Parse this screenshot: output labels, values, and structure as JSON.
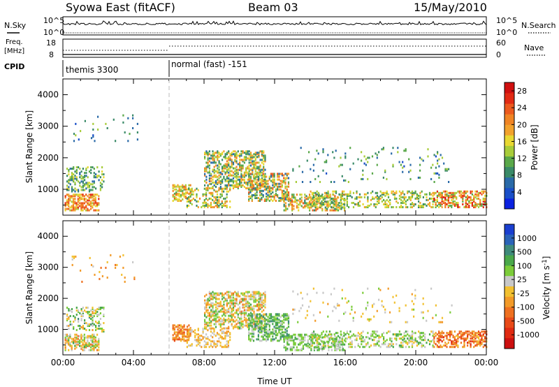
{
  "header": {
    "title": "Syowa East (fitACF)",
    "beam": "Beam 03",
    "date": "15/May/2010"
  },
  "panels": {
    "nsky": {
      "left_label": "N.Sky",
      "right_label": "N.Search",
      "ticks_left": [
        "10^5",
        "10^0"
      ],
      "ticks_right": [
        "10^5",
        "10^0"
      ]
    },
    "freq": {
      "left_label_1": "Freq.",
      "left_label_2": "[MHz]",
      "ticks_left": [
        "18",
        "8"
      ],
      "right_label": "Nave",
      "ticks_right": [
        "60",
        "0"
      ]
    },
    "cpid": {
      "label": "CPID",
      "segments": [
        "themis 3300",
        "normal (fast) -151"
      ]
    }
  },
  "chart_data": [
    {
      "type": "heatmap",
      "title": "",
      "xlabel": "",
      "ylabel": "Slant Range [km]",
      "x_ticks": [
        "00:00",
        "04:00",
        "08:00",
        "12:00",
        "16:00",
        "20:00",
        "00:00"
      ],
      "y_ticks": [
        "1000",
        "2000",
        "3000",
        "4000"
      ],
      "ylim": [
        180,
        4500
      ],
      "xlim_hours": [
        0,
        24
      ],
      "colorbar": {
        "label": "Power [dB]",
        "ticks": [
          "4",
          "8",
          "12",
          "16",
          "20",
          "24",
          "28"
        ],
        "range": [
          0,
          30
        ],
        "colors": [
          "#0b22e0",
          "#1a4fc8",
          "#2a6aa8",
          "#3a8a68",
          "#5aa84a",
          "#a8cc3a",
          "#e8d832",
          "#f2a22c",
          "#f08424",
          "#ec5a1e",
          "#e22a14",
          "#d01010"
        ]
      }
    },
    {
      "type": "heatmap",
      "title": "",
      "xlabel": "Time UT",
      "ylabel": "Slant Range [km]",
      "x_ticks": [
        "00:00",
        "04:00",
        "08:00",
        "12:00",
        "16:00",
        "20:00",
        "00:00"
      ],
      "y_ticks": [
        "1000",
        "2000",
        "3000",
        "4000"
      ],
      "ylim": [
        180,
        4500
      ],
      "xlim_hours": [
        0,
        24
      ],
      "colorbar": {
        "label": "Velocity [m s-1]",
        "label_main": "Velocity [m s",
        "label_sup": "-1",
        "label_end": "]",
        "ticks": [
          "1000",
          "500",
          "100",
          "25",
          "-25",
          "-100",
          "-500",
          "-1000"
        ],
        "colors": [
          "#1a3fd0",
          "#2a63b8",
          "#3e8a7a",
          "#4aa84a",
          "#7ccc3a",
          "#c8c8c8",
          "#f2c030",
          "#f29a28",
          "#ee7020",
          "#e84a18",
          "#e02a12",
          "#cc1010"
        ]
      }
    }
  ],
  "scatter_regions": [
    {
      "t0": 0.1,
      "t1": 2.0,
      "r0": 300,
      "r1": 800,
      "density": 0.55,
      "pow": [
        14,
        26
      ],
      "vel": [
        3,
        8
      ]
    },
    {
      "t0": 0.2,
      "t1": 2.3,
      "r0": 900,
      "r1": 1700,
      "density": 0.3,
      "pow": [
        6,
        16
      ],
      "vel": [
        2,
        7
      ]
    },
    {
      "t0": 0.5,
      "t1": 4.2,
      "r0": 2500,
      "r1": 3400,
      "density": 0.04,
      "pow": [
        4,
        14
      ],
      "vel": [
        5,
        8
      ]
    },
    {
      "t0": 6.2,
      "t1": 7.2,
      "r0": 600,
      "r1": 1100,
      "density": 0.6,
      "pow": [
        10,
        24
      ],
      "vel": [
        6,
        9
      ]
    },
    {
      "t0": 7.0,
      "t1": 9.5,
      "r0": 400,
      "r1": 1000,
      "density": 0.35,
      "pow": [
        8,
        22
      ],
      "vel": [
        5,
        7
      ]
    },
    {
      "t0": 8.0,
      "t1": 11.5,
      "r0": 1000,
      "r1": 2200,
      "density": 0.5,
      "pow": [
        6,
        22
      ],
      "vel": [
        3,
        8
      ]
    },
    {
      "t0": 10.5,
      "t1": 12.8,
      "r0": 600,
      "r1": 1500,
      "density": 0.5,
      "pow": [
        6,
        24
      ],
      "vel": [
        2,
        5
      ]
    },
    {
      "t0": 12.5,
      "t1": 16.0,
      "r0": 300,
      "r1": 800,
      "density": 0.45,
      "pow": [
        8,
        24
      ],
      "vel": [
        3,
        5
      ]
    },
    {
      "t0": 14.0,
      "t1": 21.0,
      "r0": 400,
      "r1": 900,
      "density": 0.35,
      "pow": [
        8,
        20
      ],
      "vel": [
        3,
        6
      ]
    },
    {
      "t0": 13.0,
      "t1": 22.0,
      "r0": 1200,
      "r1": 2300,
      "density": 0.05,
      "pow": [
        4,
        14
      ],
      "vel": [
        4,
        7
      ]
    },
    {
      "t0": 21.0,
      "t1": 24.0,
      "r0": 400,
      "r1": 900,
      "density": 0.5,
      "pow": [
        10,
        28
      ],
      "vel": [
        6,
        10
      ]
    }
  ]
}
